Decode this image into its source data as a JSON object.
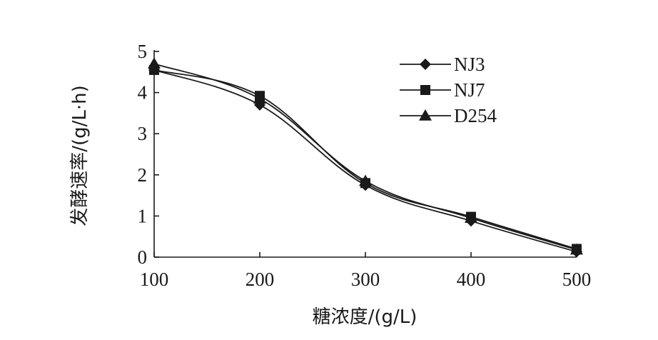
{
  "chart_data": {
    "type": "line",
    "xlabel": "糖浓度/(g/L)",
    "ylabel": "发酵速率/(g/L·h)",
    "x": [
      100,
      200,
      300,
      400,
      500
    ],
    "xlim": [
      100,
      500
    ],
    "ylim": [
      0,
      5
    ],
    "x_ticks": [
      "100",
      "200",
      "300",
      "400",
      "500"
    ],
    "y_ticks": [
      "0",
      "1",
      "2",
      "3",
      "4",
      "5"
    ],
    "grid": false,
    "legend_position": "top-right",
    "series": [
      {
        "name": "NJ3",
        "marker": "diamond",
        "values": [
          4.55,
          3.7,
          1.75,
          0.88,
          0.13
        ]
      },
      {
        "name": "NJ7",
        "marker": "square",
        "values": [
          4.55,
          3.92,
          1.8,
          0.98,
          0.2
        ]
      },
      {
        "name": "D254",
        "marker": "triangle",
        "values": [
          4.7,
          3.85,
          1.85,
          0.95,
          0.18
        ]
      }
    ]
  }
}
